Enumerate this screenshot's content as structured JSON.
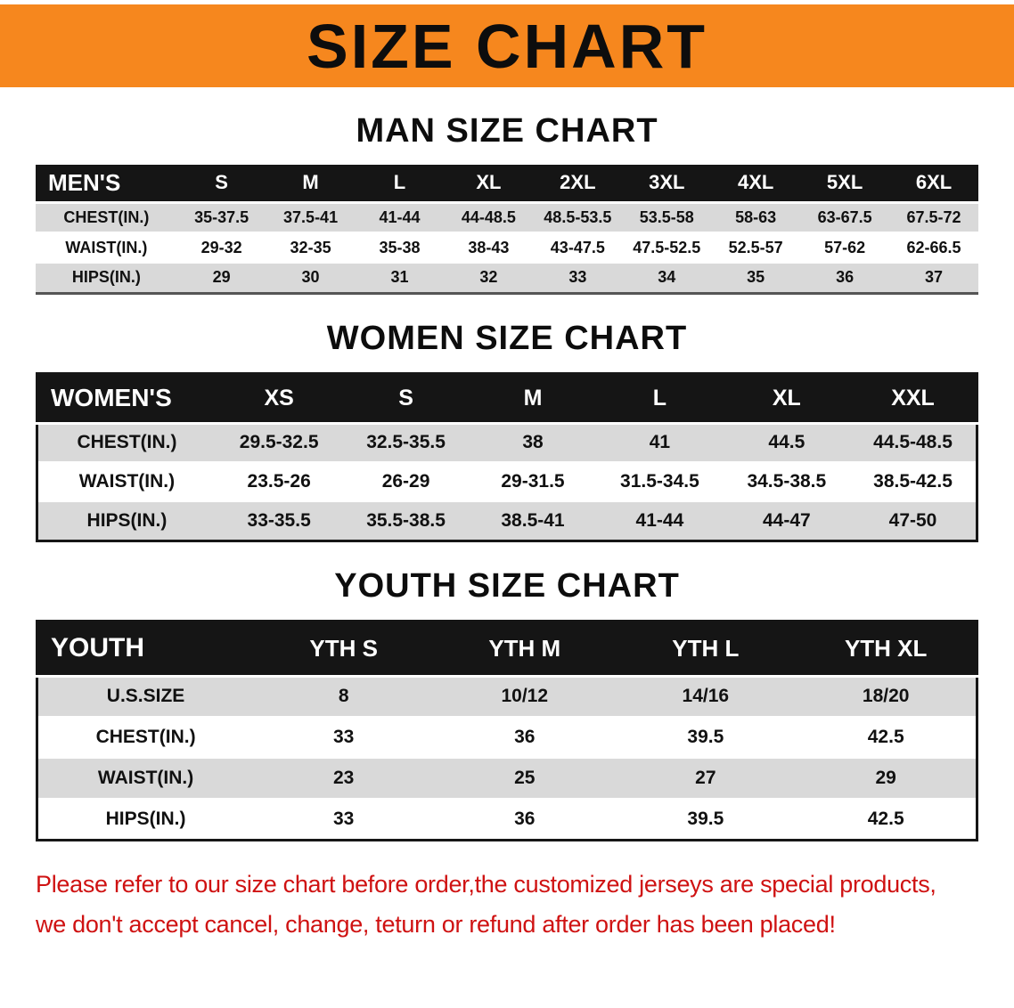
{
  "banner": {
    "title": "SIZE CHART"
  },
  "colors": {
    "banner": "#f6871e",
    "tableHeader": "#151515",
    "rowGray": "#d9d9d9",
    "disclaimer": "#cf1212"
  },
  "sections": [
    {
      "id": "men",
      "heading": "MAN SIZE CHART",
      "table": {
        "header": [
          "MEN'S",
          "S",
          "M",
          "L",
          "XL",
          "2XL",
          "3XL",
          "4XL",
          "5XL",
          "6XL"
        ],
        "rows": [
          [
            "CHEST(IN.)",
            "35-37.5",
            "37.5-41",
            "41-44",
            "44-48.5",
            "48.5-53.5",
            "53.5-58",
            "58-63",
            "63-67.5",
            "67.5-72"
          ],
          [
            "WAIST(IN.)",
            "29-32",
            "32-35",
            "35-38",
            "38-43",
            "43-47.5",
            "47.5-52.5",
            "52.5-57",
            "57-62",
            "62-66.5"
          ],
          [
            "HIPS(IN.)",
            "29",
            "30",
            "31",
            "32",
            "33",
            "34",
            "35",
            "36",
            "37"
          ]
        ]
      }
    },
    {
      "id": "women",
      "heading": "WOMEN SIZE CHART",
      "table": {
        "header": [
          "WOMEN'S",
          "XS",
          "S",
          "M",
          "L",
          "XL",
          "XXL"
        ],
        "rows": [
          [
            "CHEST(IN.)",
            "29.5-32.5",
            "32.5-35.5",
            "38",
            "41",
            "44.5",
            "44.5-48.5"
          ],
          [
            "WAIST(IN.)",
            "23.5-26",
            "26-29",
            "29-31.5",
            "31.5-34.5",
            "34.5-38.5",
            "38.5-42.5"
          ],
          [
            "HIPS(IN.)",
            "33-35.5",
            "35.5-38.5",
            "38.5-41",
            "41-44",
            "44-47",
            "47-50"
          ]
        ]
      }
    },
    {
      "id": "youth",
      "heading": "YOUTH SIZE CHART",
      "table": {
        "header": [
          "YOUTH",
          "YTH S",
          "YTH M",
          "YTH L",
          "YTH XL"
        ],
        "rows": [
          [
            "U.S.SIZE",
            "8",
            "10/12",
            "14/16",
            "18/20"
          ],
          [
            "CHEST(IN.)",
            "33",
            "36",
            "39.5",
            "42.5"
          ],
          [
            "WAIST(IN.)",
            "23",
            "25",
            "27",
            "29"
          ],
          [
            "HIPS(IN.)",
            "33",
            "36",
            "39.5",
            "42.5"
          ]
        ]
      }
    }
  ],
  "disclaimer": {
    "line1": "Please refer to our size chart before order,the customized jerseys are special products,",
    "line2": "we don't accept cancel, change, teturn or refund after order has been placed!"
  }
}
